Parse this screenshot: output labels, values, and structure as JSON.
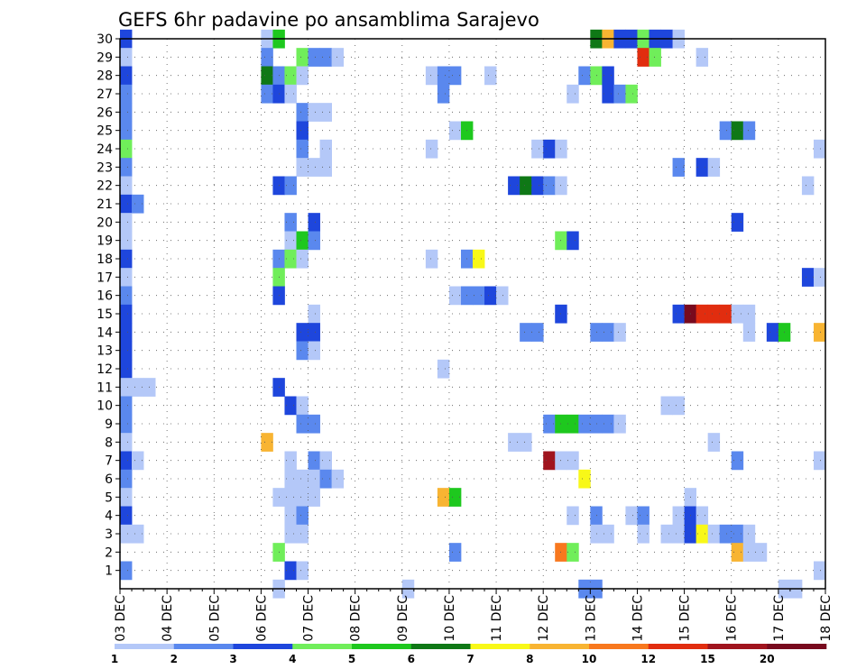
{
  "chart_data": {
    "type": "heatmap",
    "title": "GEFS 6hr padavine po ansamblima Sarajevo",
    "xlabel": "",
    "ylabel": "",
    "x_tick_labels": [
      "03 DEC",
      "04 DEC",
      "05 DEC",
      "06 DEC",
      "07 DEC",
      "08 DEC",
      "09 DEC",
      "10 DEC",
      "11 DEC",
      "12 DEC",
      "13 DEC",
      "14 DEC",
      "15 DEC",
      "16 DEC",
      "17 DEC",
      "18 DEC"
    ],
    "y_tick_labels": [
      "1",
      "2",
      "3",
      "4",
      "5",
      "6",
      "7",
      "8",
      "9",
      "10",
      "11",
      "12",
      "13",
      "14",
      "15",
      "16",
      "17",
      "18",
      "19",
      "20",
      "21",
      "22",
      "23",
      "24",
      "25",
      "26",
      "27",
      "28",
      "29",
      "30"
    ],
    "ylim": [
      0,
      30
    ],
    "grid": true,
    "colorbar": {
      "position": "bottom",
      "labels": [
        "1",
        "2",
        "3",
        "4",
        "5",
        "6",
        "7",
        "8",
        "10",
        "12",
        "15",
        "20"
      ],
      "colors": [
        "#b4c8f8",
        "#5a88ee",
        "#1e46dc",
        "#70ee5a",
        "#1ec81e",
        "#0f7816",
        "#f8f818",
        "#f8b432",
        "#f8781e",
        "#e12d0f",
        "#a0141e",
        "#780a1e"
      ]
    },
    "legend_classes": [
      "1-2",
      "2-3",
      "3-4",
      "4-5",
      "5-6",
      "6-7",
      "7-8",
      "8-10",
      "10-12",
      "12-15",
      "15-20",
      ">20"
    ],
    "cells_note": "Each cell: [member (y), 6-hour step index from 03 DEC 00Z (x), color class index 0-11]",
    "cells": [
      [
        30,
        0,
        2
      ],
      [
        30,
        12,
        0
      ],
      [
        30,
        13,
        4
      ],
      [
        30,
        40,
        5
      ],
      [
        30,
        41,
        7
      ],
      [
        30,
        42,
        2
      ],
      [
        30,
        43,
        2
      ],
      [
        30,
        44,
        3
      ],
      [
        30,
        45,
        2
      ],
      [
        30,
        46,
        2
      ],
      [
        30,
        47,
        0
      ],
      [
        29,
        0,
        0
      ],
      [
        29,
        12,
        1
      ],
      [
        29,
        15,
        3
      ],
      [
        29,
        16,
        1
      ],
      [
        29,
        17,
        1
      ],
      [
        29,
        18,
        0
      ],
      [
        29,
        44,
        9
      ],
      [
        29,
        45,
        3
      ],
      [
        29,
        49,
        0
      ],
      [
        28,
        0,
        2
      ],
      [
        28,
        12,
        5
      ],
      [
        28,
        13,
        1
      ],
      [
        28,
        14,
        3
      ],
      [
        28,
        15,
        0
      ],
      [
        28,
        26,
        0
      ],
      [
        28,
        27,
        1
      ],
      [
        28,
        28,
        1
      ],
      [
        28,
        31,
        0
      ],
      [
        28,
        39,
        1
      ],
      [
        28,
        40,
        3
      ],
      [
        28,
        41,
        2
      ],
      [
        27,
        0,
        1
      ],
      [
        27,
        12,
        1
      ],
      [
        27,
        13,
        2
      ],
      [
        27,
        14,
        0
      ],
      [
        27,
        27,
        1
      ],
      [
        27,
        38,
        0
      ],
      [
        27,
        41,
        2
      ],
      [
        27,
        42,
        1
      ],
      [
        27,
        43,
        3
      ],
      [
        26,
        0,
        1
      ],
      [
        26,
        15,
        1
      ],
      [
        26,
        16,
        0
      ],
      [
        26,
        17,
        0
      ],
      [
        25,
        0,
        1
      ],
      [
        25,
        15,
        2
      ],
      [
        25,
        28,
        0
      ],
      [
        25,
        29,
        4
      ],
      [
        25,
        51,
        1
      ],
      [
        25,
        52,
        5
      ],
      [
        25,
        53,
        1
      ],
      [
        24,
        0,
        3
      ],
      [
        24,
        15,
        1
      ],
      [
        24,
        17,
        0
      ],
      [
        24,
        26,
        0
      ],
      [
        24,
        35,
        0
      ],
      [
        24,
        36,
        2
      ],
      [
        24,
        37,
        0
      ],
      [
        24,
        59,
        0
      ],
      [
        23,
        0,
        1
      ],
      [
        23,
        15,
        0
      ],
      [
        23,
        16,
        0
      ],
      [
        23,
        17,
        0
      ],
      [
        23,
        47,
        1
      ],
      [
        23,
        49,
        2
      ],
      [
        23,
        50,
        0
      ],
      [
        22,
        0,
        0
      ],
      [
        22,
        13,
        2
      ],
      [
        22,
        14,
        1
      ],
      [
        22,
        33,
        2
      ],
      [
        22,
        34,
        5
      ],
      [
        22,
        35,
        2
      ],
      [
        22,
        36,
        1
      ],
      [
        22,
        37,
        0
      ],
      [
        22,
        58,
        0
      ],
      [
        21,
        0,
        2
      ],
      [
        21,
        1,
        1
      ],
      [
        20,
        0,
        0
      ],
      [
        20,
        14,
        1
      ],
      [
        20,
        16,
        2
      ],
      [
        20,
        52,
        2
      ],
      [
        19,
        0,
        0
      ],
      [
        19,
        14,
        0
      ],
      [
        19,
        15,
        4
      ],
      [
        19,
        16,
        1
      ],
      [
        19,
        37,
        3
      ],
      [
        19,
        38,
        2
      ],
      [
        18,
        0,
        2
      ],
      [
        18,
        13,
        1
      ],
      [
        18,
        14,
        3
      ],
      [
        18,
        15,
        0
      ],
      [
        18,
        26,
        0
      ],
      [
        18,
        29,
        1
      ],
      [
        18,
        30,
        6
      ],
      [
        17,
        0,
        0
      ],
      [
        17,
        13,
        3
      ],
      [
        17,
        58,
        2
      ],
      [
        17,
        59,
        0
      ],
      [
        16,
        0,
        1
      ],
      [
        16,
        13,
        2
      ],
      [
        16,
        28,
        0
      ],
      [
        16,
        29,
        1
      ],
      [
        16,
        30,
        1
      ],
      [
        16,
        31,
        2
      ],
      [
        16,
        32,
        0
      ],
      [
        15,
        0,
        2
      ],
      [
        15,
        16,
        0
      ],
      [
        15,
        37,
        2
      ],
      [
        15,
        47,
        2
      ],
      [
        15,
        48,
        11
      ],
      [
        15,
        49,
        9
      ],
      [
        15,
        50,
        9
      ],
      [
        15,
        51,
        9
      ],
      [
        15,
        52,
        0
      ],
      [
        15,
        53,
        0
      ],
      [
        14,
        0,
        2
      ],
      [
        14,
        15,
        2
      ],
      [
        14,
        16,
        2
      ],
      [
        14,
        34,
        1
      ],
      [
        14,
        35,
        1
      ],
      [
        14,
        40,
        1
      ],
      [
        14,
        41,
        1
      ],
      [
        14,
        42,
        0
      ],
      [
        14,
        53,
        0
      ],
      [
        14,
        55,
        2
      ],
      [
        14,
        56,
        4
      ],
      [
        14,
        59,
        7
      ],
      [
        13,
        0,
        2
      ],
      [
        13,
        15,
        1
      ],
      [
        13,
        16,
        0
      ],
      [
        12,
        0,
        2
      ],
      [
        12,
        27,
        0
      ],
      [
        11,
        0,
        0
      ],
      [
        11,
        1,
        0
      ],
      [
        11,
        2,
        0
      ],
      [
        11,
        13,
        2
      ],
      [
        10,
        0,
        1
      ],
      [
        10,
        14,
        2
      ],
      [
        10,
        15,
        0
      ],
      [
        10,
        46,
        0
      ],
      [
        10,
        47,
        0
      ],
      [
        9,
        0,
        1
      ],
      [
        9,
        15,
        1
      ],
      [
        9,
        16,
        1
      ],
      [
        9,
        36,
        1
      ],
      [
        9,
        37,
        4
      ],
      [
        9,
        38,
        4
      ],
      [
        9,
        39,
        1
      ],
      [
        9,
        40,
        1
      ],
      [
        9,
        41,
        1
      ],
      [
        9,
        42,
        0
      ],
      [
        8,
        0,
        0
      ],
      [
        8,
        12,
        7
      ],
      [
        8,
        33,
        0
      ],
      [
        8,
        34,
        0
      ],
      [
        8,
        50,
        0
      ],
      [
        7,
        0,
        2
      ],
      [
        7,
        1,
        0
      ],
      [
        7,
        14,
        0
      ],
      [
        7,
        16,
        1
      ],
      [
        7,
        17,
        0
      ],
      [
        7,
        36,
        10
      ],
      [
        7,
        37,
        0
      ],
      [
        7,
        38,
        0
      ],
      [
        7,
        52,
        1
      ],
      [
        7,
        59,
        0
      ],
      [
        6,
        0,
        1
      ],
      [
        6,
        14,
        0
      ],
      [
        6,
        15,
        0
      ],
      [
        6,
        16,
        0
      ],
      [
        6,
        17,
        1
      ],
      [
        6,
        18,
        0
      ],
      [
        6,
        39,
        6
      ],
      [
        5,
        0,
        0
      ],
      [
        5,
        13,
        0
      ],
      [
        5,
        14,
        0
      ],
      [
        5,
        15,
        0
      ],
      [
        5,
        16,
        0
      ],
      [
        5,
        27,
        7
      ],
      [
        5,
        28,
        4
      ],
      [
        5,
        48,
        0
      ],
      [
        4,
        0,
        2
      ],
      [
        4,
        14,
        0
      ],
      [
        4,
        15,
        1
      ],
      [
        4,
        38,
        0
      ],
      [
        4,
        40,
        1
      ],
      [
        4,
        43,
        0
      ],
      [
        4,
        44,
        1
      ],
      [
        4,
        47,
        0
      ],
      [
        4,
        48,
        2
      ],
      [
        4,
        49,
        0
      ],
      [
        3,
        0,
        0
      ],
      [
        3,
        1,
        0
      ],
      [
        3,
        14,
        0
      ],
      [
        3,
        15,
        0
      ],
      [
        3,
        40,
        0
      ],
      [
        3,
        41,
        0
      ],
      [
        3,
        44,
        0
      ],
      [
        3,
        46,
        0
      ],
      [
        3,
        47,
        0
      ],
      [
        3,
        48,
        2
      ],
      [
        3,
        49,
        6
      ],
      [
        3,
        50,
        0
      ],
      [
        3,
        51,
        1
      ],
      [
        3,
        52,
        1
      ],
      [
        3,
        53,
        0
      ],
      [
        2,
        13,
        3
      ],
      [
        2,
        28,
        1
      ],
      [
        2,
        37,
        8
      ],
      [
        2,
        38,
        3
      ],
      [
        2,
        52,
        7
      ],
      [
        2,
        53,
        0
      ],
      [
        2,
        54,
        0
      ],
      [
        1,
        0,
        1
      ],
      [
        1,
        14,
        2
      ],
      [
        1,
        15,
        0
      ],
      [
        1,
        59,
        0
      ],
      [
        0,
        13,
        0
      ],
      [
        0,
        24,
        0
      ],
      [
        0,
        39,
        1
      ],
      [
        0,
        40,
        1
      ],
      [
        0,
        56,
        0
      ],
      [
        0,
        57,
        0
      ]
    ]
  }
}
